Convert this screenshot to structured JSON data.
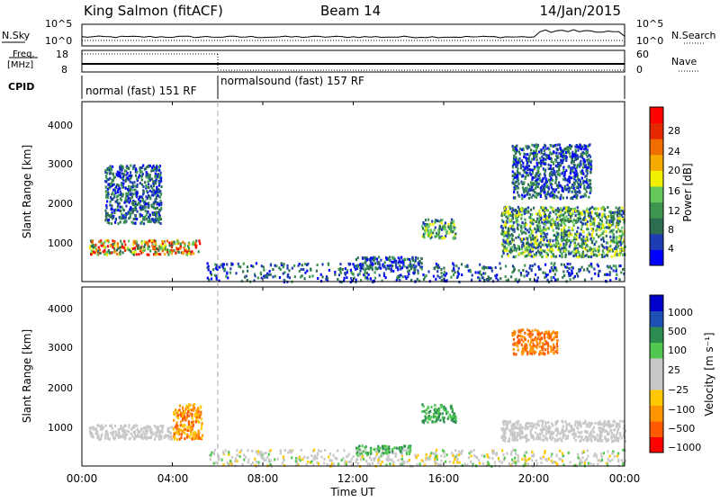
{
  "header": {
    "station": "King Salmon (fitACF)",
    "beam": "Beam 14",
    "date": "14/Jan/2015"
  },
  "noise_panel": {
    "left_label": "N.Sky",
    "right_label": "N.Search",
    "left_ticks": [
      "10^5",
      "10^0"
    ],
    "right_ticks": [
      "10^5",
      "10^0"
    ]
  },
  "freq_panel": {
    "left_label_top": "Freq.",
    "left_label_unit": "[MHz]",
    "right_label": "Nave",
    "left_ticks": [
      "18",
      "8"
    ],
    "right_ticks": [
      "60",
      "0"
    ]
  },
  "cpid": {
    "label": "CPID",
    "segments": [
      {
        "text": "normal (fast) 151 RF",
        "start_hour": 0,
        "end_hour": 6
      },
      {
        "text": "normalsound (fast) 157 RF",
        "start_hour": 6,
        "end_hour": 24
      }
    ]
  },
  "colorbars": {
    "power": {
      "label": "Power [dB]",
      "ticks": [
        "28",
        "24",
        "20",
        "16",
        "12",
        "8",
        "4"
      ],
      "colors": [
        "#0000ff",
        "#1e3cb4",
        "#2d6e50",
        "#3c9650",
        "#64c85a",
        "#f0f000",
        "#f5aa00",
        "#f06e00",
        "#e62800",
        "#ff0000"
      ]
    },
    "velocity": {
      "label": "Velocity [m s⁻¹]",
      "ticks": [
        "1000",
        "500",
        "100",
        "25",
        "−25",
        "−100",
        "−500",
        "−1000"
      ],
      "colors": [
        "#ff0000",
        "#ff5a00",
        "#ff9600",
        "#ffc800",
        "#c8c8c8",
        "#c8c8c8",
        "#50c850",
        "#2d8c50",
        "#1e50b4",
        "#0000c8"
      ]
    }
  },
  "chart_data": [
    {
      "type": "heatmap",
      "name": "power",
      "ylabel": "Slant Range [km]",
      "xlabel": "",
      "ylim": [
        180,
        4500
      ],
      "yticks": [
        "4000",
        "3000",
        "2000",
        "1000"
      ],
      "xlim_hours": [
        0,
        24
      ],
      "regions": [
        {
          "t": [
            0.3,
            5.2
          ],
          "r": [
            850,
            1200
          ],
          "level": "high"
        },
        {
          "t": [
            1.0,
            3.5
          ],
          "r": [
            1600,
            3000
          ],
          "level": "low"
        },
        {
          "t": [
            15.0,
            16.5
          ],
          "r": [
            1250,
            1700
          ],
          "level": "mid"
        },
        {
          "t": [
            12.0,
            15.0
          ],
          "r": [
            500,
            800
          ],
          "level": "low"
        },
        {
          "t": [
            18.5,
            24.0
          ],
          "r": [
            800,
            2000
          ],
          "level": "mid"
        },
        {
          "t": [
            19.0,
            22.5
          ],
          "r": [
            2200,
            3500
          ],
          "level": "low"
        }
      ]
    },
    {
      "type": "heatmap",
      "name": "velocity",
      "ylabel": "Slant Range [km]",
      "xlabel": "Time UT",
      "ylim": [
        180,
        4500
      ],
      "yticks": [
        "4000",
        "3000",
        "2000",
        "1000"
      ],
      "xticks": [
        "00:00",
        "04:00",
        "08:00",
        "12:00",
        "16:00",
        "20:00",
        "00:00"
      ],
      "regions": [
        {
          "t": [
            0.3,
            4.0
          ],
          "r": [
            850,
            1200
          ],
          "v": "~0"
        },
        {
          "t": [
            4.0,
            5.3
          ],
          "r": [
            850,
            1700
          ],
          "v": "-100 to -500"
        },
        {
          "t": [
            15.0,
            16.5
          ],
          "r": [
            1250,
            1700
          ],
          "v": "100 to 500"
        },
        {
          "t": [
            12.0,
            14.5
          ],
          "r": [
            500,
            700
          ],
          "v": "100 to 500"
        },
        {
          "t": [
            19.0,
            21.0
          ],
          "r": [
            2900,
            3500
          ],
          "v": "-500"
        },
        {
          "t": [
            18.5,
            24.0
          ],
          "r": [
            800,
            1300
          ],
          "v": "~0"
        }
      ]
    }
  ]
}
